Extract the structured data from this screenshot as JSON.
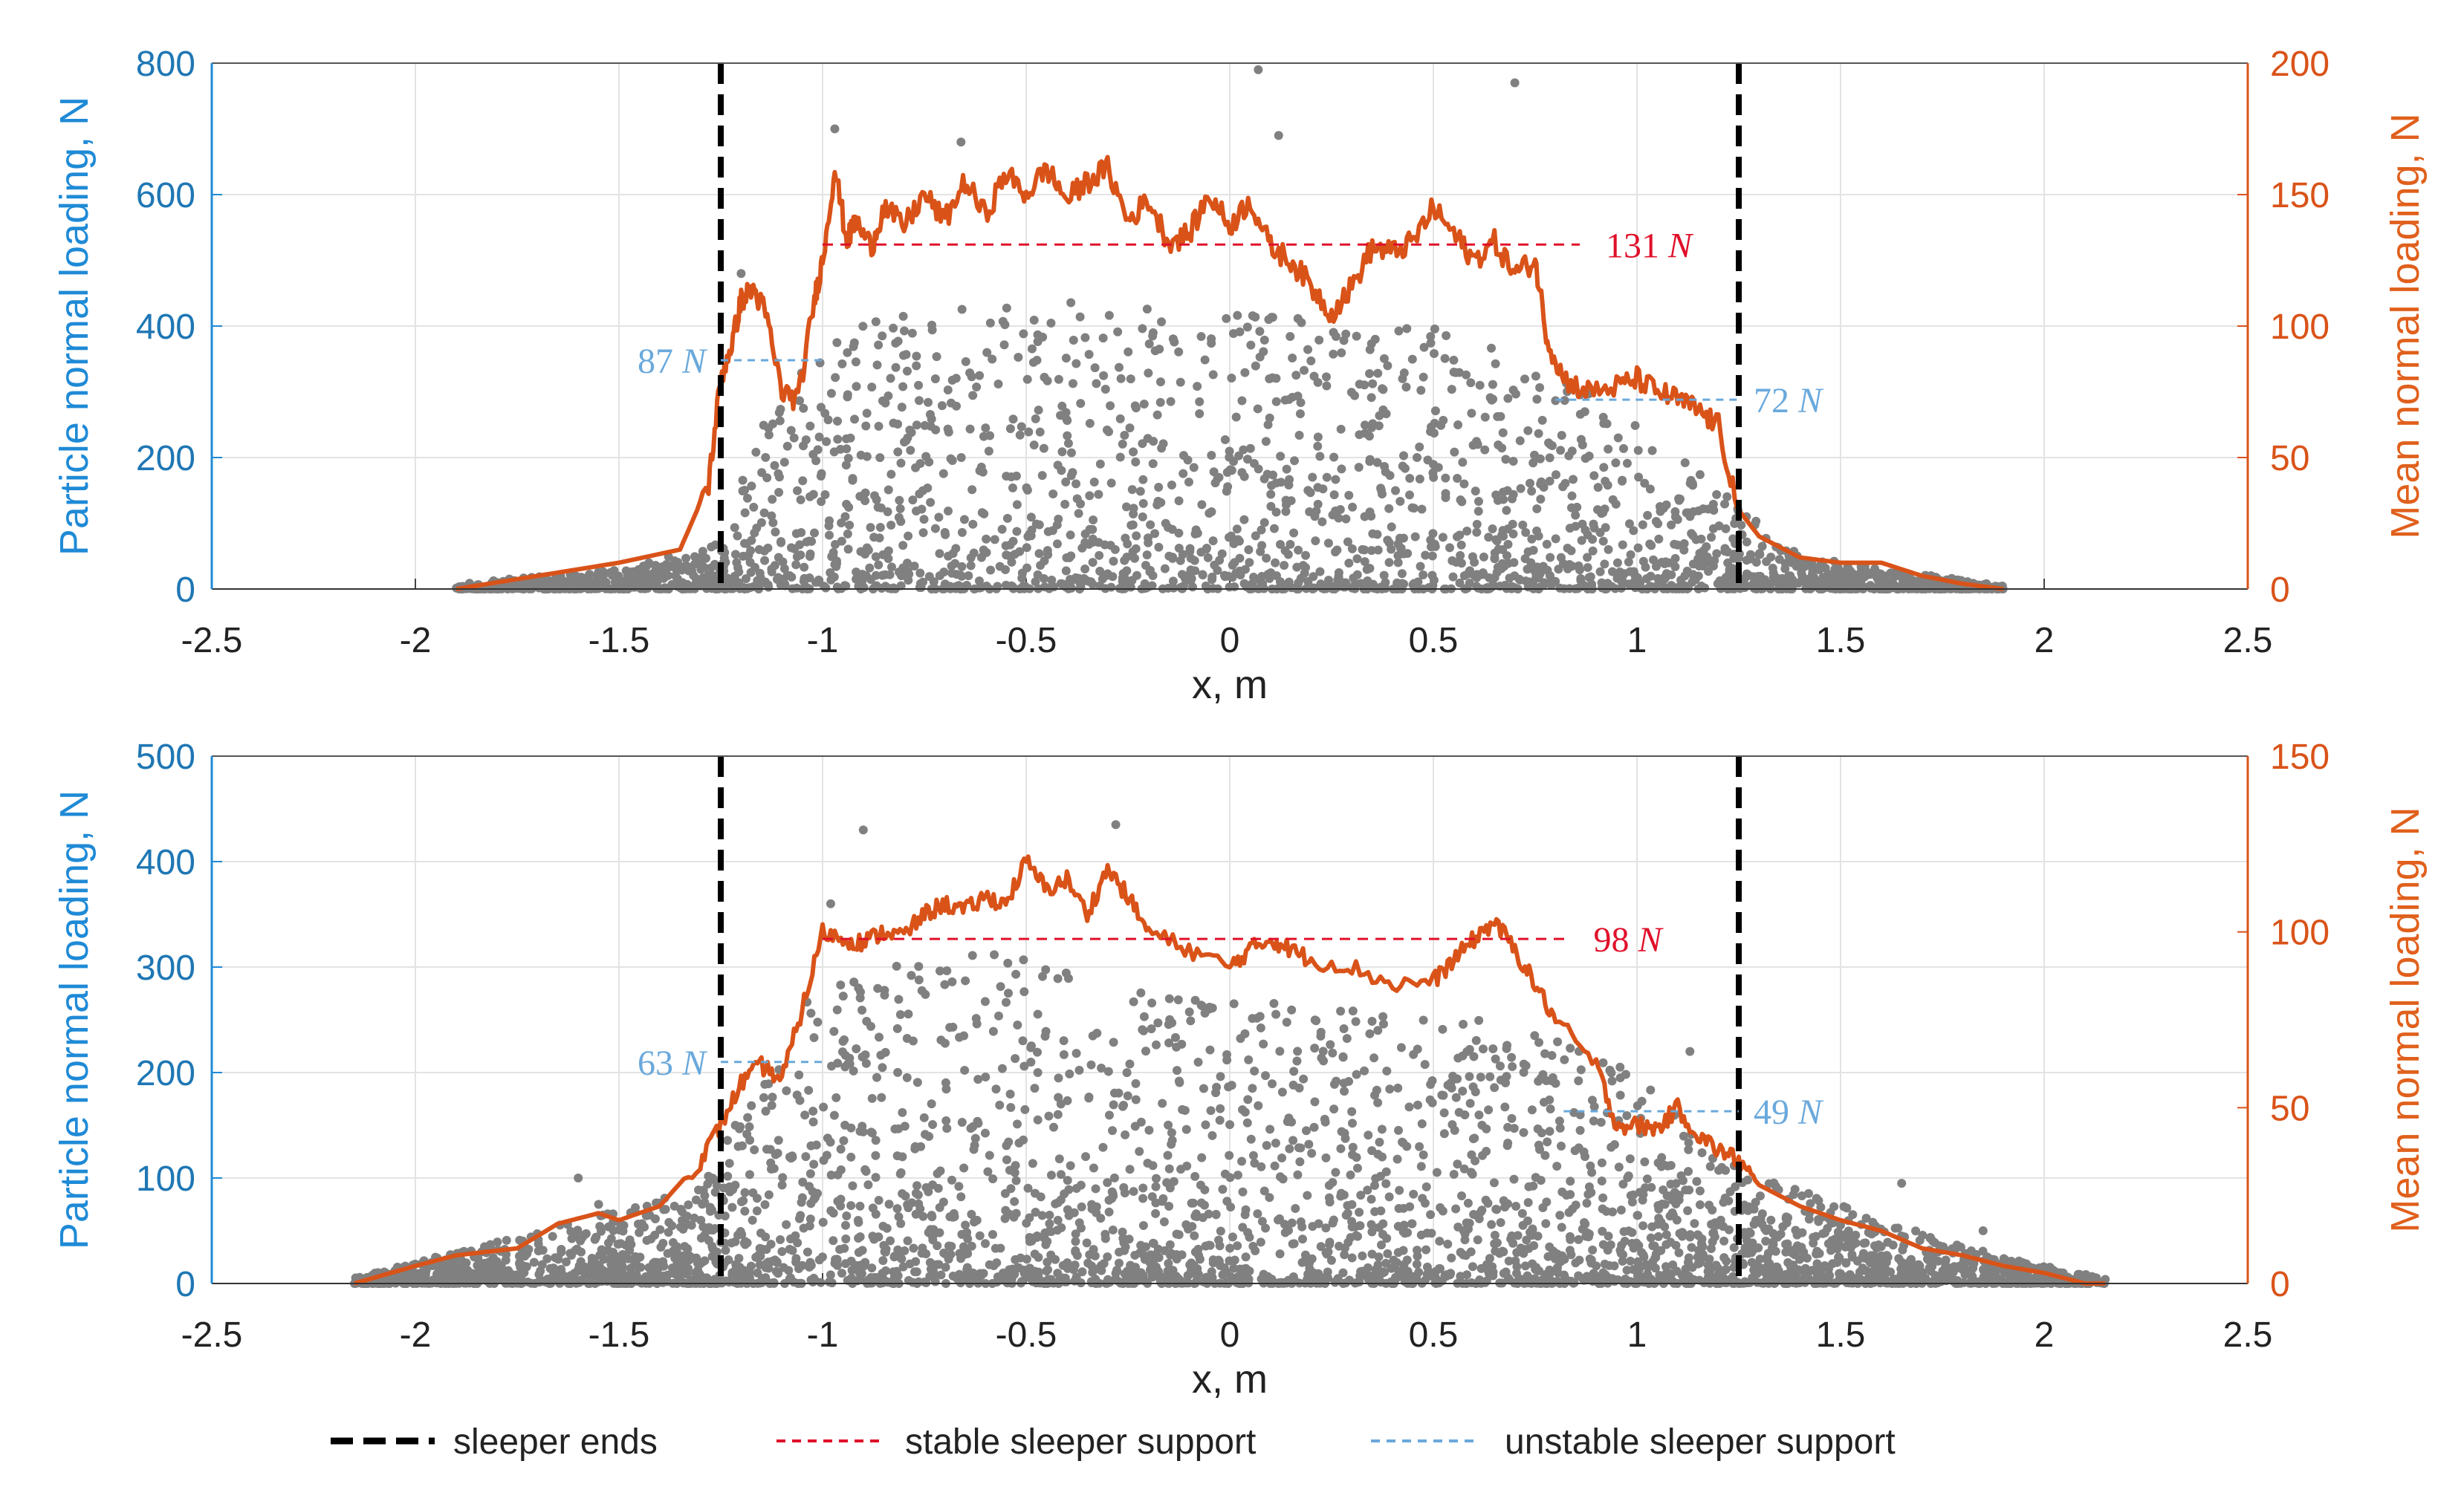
{
  "colors": {
    "left_axis": "#1f8ad6",
    "right_axis": "#d95319",
    "scatter": "#808080",
    "sleeper": "#000000",
    "stable": "#e0102a",
    "unstable": "#6aa9dc",
    "grid": "#e3e3e3"
  },
  "legend": {
    "sleeper_ends": "sleeper ends",
    "stable": "stable sleeper support",
    "unstable": "unstable sleeper support"
  },
  "chart_data": [
    {
      "type": "scatter+line",
      "xlabel": "x, m",
      "ylabel_left": "Particle normal loading, N",
      "ylabel_right": "Mean normal loading, N",
      "xlim": [
        -2.5,
        2.5
      ],
      "ylim_left": [
        0,
        800
      ],
      "ylim_right": [
        0,
        200
      ],
      "x_ticks": [
        "-2.5",
        "-2",
        "-1.5",
        "-1",
        "-0.5",
        "0",
        "0.5",
        "1",
        "1.5",
        "2",
        "2.5"
      ],
      "y_ticks_left": [
        "0",
        "200",
        "400",
        "600",
        "800"
      ],
      "y_ticks_right": [
        "0",
        "50",
        "100",
        "150",
        "200"
      ],
      "sleeper_ends_x": [
        -1.25,
        1.25
      ],
      "scatter_extent": [
        -1.9,
        1.9
      ],
      "scatter_envelope": [
        [
          -1.9,
          8
        ],
        [
          -1.5,
          30
        ],
        [
          -1.25,
          70
        ],
        [
          -1.15,
          250
        ],
        [
          -1.0,
          380
        ],
        [
          -0.7,
          450
        ],
        [
          0,
          420
        ],
        [
          0.5,
          400
        ],
        [
          0.8,
          330
        ],
        [
          1.0,
          250
        ],
        [
          1.25,
          130
        ],
        [
          1.4,
          50
        ],
        [
          1.9,
          5
        ]
      ],
      "scatter_outliers": [
        [
          -0.97,
          700
        ],
        [
          -0.66,
          680
        ],
        [
          0.07,
          790
        ],
        [
          0.7,
          770
        ],
        [
          -1.2,
          480
        ],
        [
          0.12,
          690
        ]
      ],
      "mean_series": {
        "name": "Mean normal loading",
        "x": [
          -1.9,
          -1.7,
          -1.5,
          -1.35,
          -1.28,
          -1.25,
          -1.22,
          -1.2,
          -1.17,
          -1.14,
          -1.1,
          -1.06,
          -1.02,
          -1.0,
          -0.97,
          -0.94,
          -0.92,
          -0.88,
          -0.85,
          -0.8,
          -0.75,
          -0.7,
          -0.65,
          -0.6,
          -0.55,
          -0.5,
          -0.45,
          -0.4,
          -0.35,
          -0.3,
          -0.25,
          -0.2,
          -0.15,
          -0.1,
          -0.05,
          0.0,
          0.05,
          0.1,
          0.15,
          0.2,
          0.25,
          0.3,
          0.35,
          0.4,
          0.45,
          0.5,
          0.55,
          0.6,
          0.65,
          0.7,
          0.75,
          0.78,
          0.82,
          0.88,
          0.95,
          1.0,
          1.05,
          1.1,
          1.15,
          1.2,
          1.25,
          1.3,
          1.4,
          1.5,
          1.6,
          1.7,
          1.8,
          1.9
        ],
        "y": [
          0,
          5,
          10,
          15,
          40,
          80,
          95,
          110,
          114,
          105,
          75,
          72,
          110,
          125,
          160,
          132,
          140,
          130,
          145,
          138,
          150,
          140,
          155,
          142,
          158,
          150,
          160,
          148,
          155,
          160,
          140,
          148,
          132,
          135,
          150,
          138,
          148,
          130,
          125,
          115,
          105,
          115,
          130,
          128,
          132,
          145,
          135,
          125,
          132,
          120,
          125,
          95,
          80,
          75,
          77,
          80,
          75,
          72,
          68,
          62,
          30,
          20,
          12,
          10,
          10,
          5,
          2,
          0
        ]
      },
      "stable_support": {
        "value": 131,
        "label": "131",
        "unit": "N",
        "x_range": [
          -1.0,
          0.75
        ]
      },
      "unstable_support": [
        {
          "value": 87,
          "label": "87",
          "unit": "N",
          "x_range": [
            -1.25,
            -1.0
          ]
        },
        {
          "value": 72,
          "label": "72",
          "unit": "N",
          "x_range": [
            0.8,
            1.25
          ]
        }
      ]
    },
    {
      "type": "scatter+line",
      "xlabel": "x, m",
      "ylabel_left": "Particle normal loading, N",
      "ylabel_right": "Mean normal loading, N",
      "xlim": [
        -2.5,
        2.5
      ],
      "ylim_left": [
        0,
        500
      ],
      "ylim_right": [
        0,
        150
      ],
      "x_ticks": [
        "-2.5",
        "-2",
        "-1.5",
        "-1",
        "-0.5",
        "0",
        "0.5",
        "1",
        "1.5",
        "2",
        "2.5"
      ],
      "y_ticks_left": [
        "0",
        "100",
        "200",
        "300",
        "400",
        "500"
      ],
      "y_ticks_right": [
        "0",
        "50",
        "100",
        "150"
      ],
      "sleeper_ends_x": [
        -1.25,
        1.25
      ],
      "scatter_extent": [
        -2.15,
        2.15
      ],
      "scatter_envelope": [
        [
          -2.15,
          5
        ],
        [
          -1.9,
          30
        ],
        [
          -1.6,
          60
        ],
        [
          -1.3,
          90
        ],
        [
          -1.15,
          200
        ],
        [
          -1.0,
          290
        ],
        [
          -0.6,
          320
        ],
        [
          -0.2,
          280
        ],
        [
          0.3,
          260
        ],
        [
          0.7,
          250
        ],
        [
          1.0,
          200
        ],
        [
          1.25,
          110
        ],
        [
          1.6,
          60
        ],
        [
          1.9,
          25
        ],
        [
          2.15,
          5
        ]
      ],
      "scatter_outliers": [
        [
          -0.9,
          430
        ],
        [
          -0.98,
          360
        ],
        [
          -0.28,
          435
        ],
        [
          -1.6,
          100
        ],
        [
          -1.55,
          75
        ],
        [
          1.13,
          220
        ],
        [
          1.65,
          95
        ],
        [
          1.85,
          50
        ]
      ],
      "mean_series": {
        "name": "Mean normal loading",
        "x": [
          -2.15,
          -2.0,
          -1.9,
          -1.75,
          -1.65,
          -1.55,
          -1.5,
          -1.4,
          -1.3,
          -1.25,
          -1.2,
          -1.15,
          -1.1,
          -1.05,
          -1.0,
          -0.95,
          -0.9,
          -0.85,
          -0.8,
          -0.75,
          -0.7,
          -0.65,
          -0.6,
          -0.55,
          -0.5,
          -0.45,
          -0.4,
          -0.35,
          -0.3,
          -0.25,
          -0.2,
          -0.1,
          0.0,
          0.05,
          0.1,
          0.15,
          0.2,
          0.3,
          0.4,
          0.5,
          0.55,
          0.6,
          0.65,
          0.7,
          0.75,
          0.8,
          0.9,
          0.95,
          1.0,
          1.05,
          1.1,
          1.15,
          1.2,
          1.25,
          1.3,
          1.4,
          1.5,
          1.6,
          1.7,
          1.8,
          1.9,
          2.0,
          2.1,
          2.15
        ],
        "y": [
          0,
          5,
          8,
          10,
          17,
          20,
          18,
          22,
          35,
          45,
          57,
          62,
          58,
          78,
          100,
          98,
          97,
          100,
          99,
          105,
          108,
          106,
          110,
          108,
          120,
          112,
          115,
          105,
          118,
          110,
          100,
          95,
          90,
          95,
          98,
          95,
          92,
          90,
          85,
          86,
          92,
          98,
          103,
          95,
          85,
          75,
          62,
          45,
          45,
          44,
          50,
          42,
          38,
          35,
          28,
          22,
          18,
          15,
          10,
          8,
          5,
          3,
          0,
          0
        ]
      },
      "stable_support": {
        "value": 98,
        "label": "98",
        "unit": "N",
        "x_range": [
          -1.0,
          0.72
        ]
      },
      "unstable_support": [
        {
          "value": 63,
          "label": "63",
          "unit": "N",
          "x_range": [
            -1.25,
            -1.0
          ]
        },
        {
          "value": 49,
          "label": "49",
          "unit": "N",
          "x_range": [
            0.82,
            1.25
          ]
        }
      ]
    }
  ]
}
